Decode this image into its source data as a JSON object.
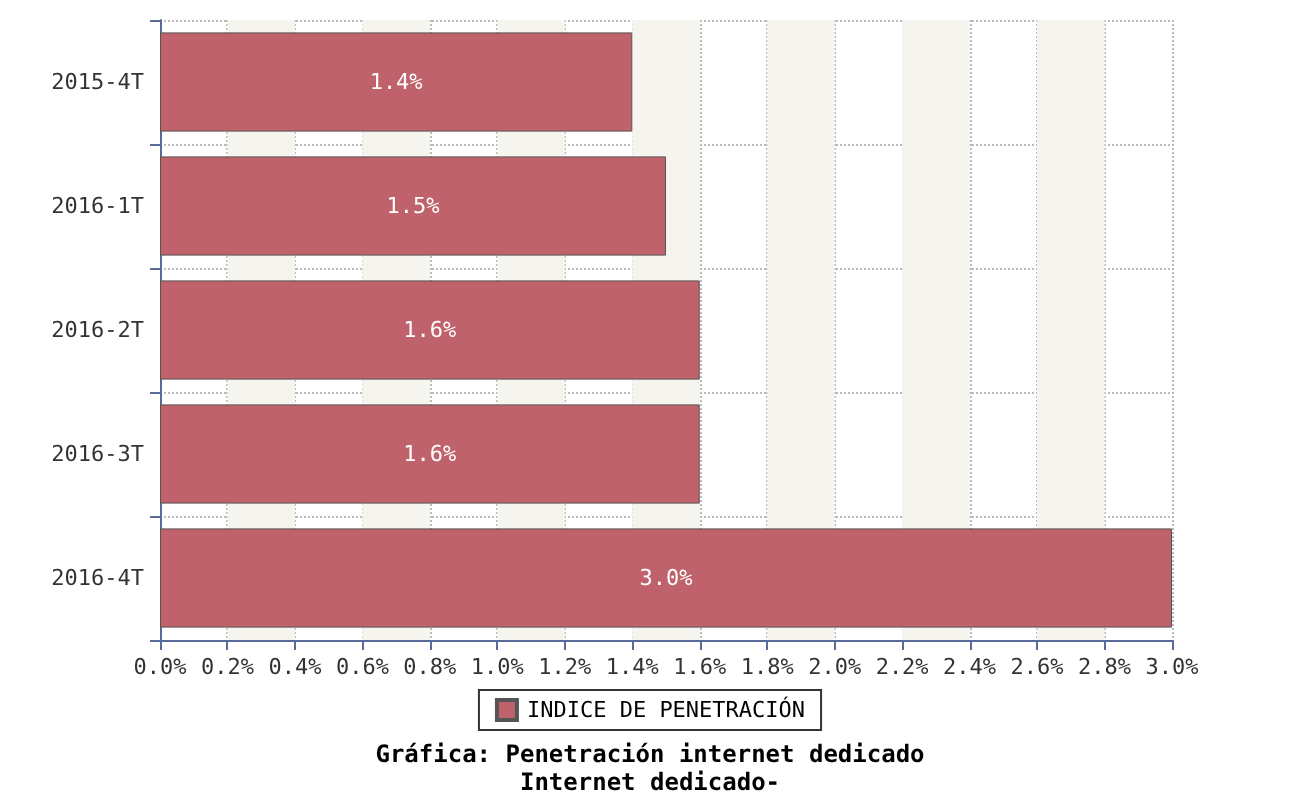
{
  "chart_data": {
    "type": "bar",
    "orientation": "horizontal",
    "title": "Gráfica: Penetración internet dedicado",
    "subtitle": "Internet dedicado-",
    "categories": [
      "2015-4T",
      "2016-1T",
      "2016-2T",
      "2016-3T",
      "2016-4T"
    ],
    "series": [
      {
        "name": "INDICE DE PENETRACIÓN",
        "color": "#c0626b",
        "values": [
          1.4,
          1.5,
          1.6,
          1.6,
          3.0
        ],
        "value_labels": [
          "1.4%",
          "1.5%",
          "1.6%",
          "1.6%",
          "3.0%"
        ]
      }
    ],
    "xlim": [
      0,
      3.0
    ],
    "xticks": [
      {
        "value": 0,
        "label": "0.0%"
      },
      {
        "value": 0.2,
        "label": "0.2%"
      },
      {
        "value": 0.4,
        "label": "0.4%"
      },
      {
        "value": 0.6,
        "label": "0.6%"
      },
      {
        "value": 0.8,
        "label": "0.8%"
      },
      {
        "value": 1.0,
        "label": "1.0%"
      },
      {
        "value": 1.2,
        "label": "1.2%"
      },
      {
        "value": 1.4,
        "label": "1.4%"
      },
      {
        "value": 1.6,
        "label": "1.6%"
      },
      {
        "value": 1.8,
        "label": "1.8%"
      },
      {
        "value": 2.0,
        "label": "2.0%"
      },
      {
        "value": 2.2,
        "label": "2.2%"
      },
      {
        "value": 2.4,
        "label": "2.4%"
      },
      {
        "value": 2.6,
        "label": "2.6%"
      },
      {
        "value": 2.8,
        "label": "2.8%"
      },
      {
        "value": 3.0,
        "label": "3.0%"
      }
    ],
    "bands": [
      {
        "axis": "x",
        "from": 0.2,
        "to": 0.4,
        "color": "#f5f4ee"
      },
      {
        "axis": "x",
        "from": 0.6,
        "to": 0.8,
        "color": "#f5f4ee"
      },
      {
        "axis": "x",
        "from": 1.0,
        "to": 1.2,
        "color": "#f5f4ee"
      },
      {
        "axis": "x",
        "from": 1.4,
        "to": 1.6,
        "color": "#f5f4ee"
      },
      {
        "axis": "x",
        "from": 1.8,
        "to": 2.0,
        "color": "#f5f4ee"
      },
      {
        "axis": "x",
        "from": 2.2,
        "to": 2.4,
        "color": "#f5f4ee"
      },
      {
        "axis": "x",
        "from": 2.6,
        "to": 2.8,
        "color": "#f5f4ee"
      }
    ],
    "grid": true,
    "legend": "bottom"
  }
}
